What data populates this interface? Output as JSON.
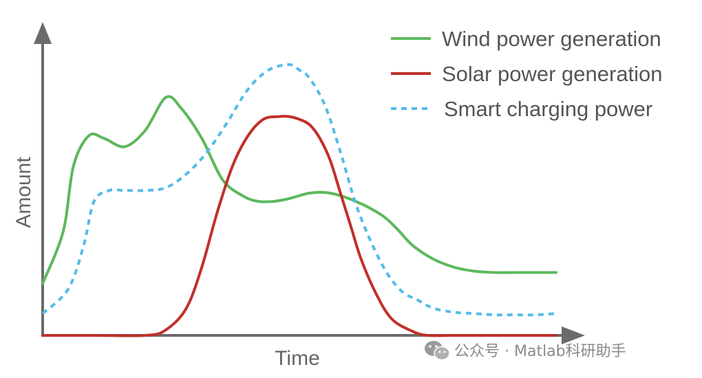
{
  "chart_data": {
    "type": "line",
    "title": "",
    "xlabel": "Time",
    "ylabel": "Amount",
    "xlim": [
      0,
      100
    ],
    "ylim": [
      0,
      100
    ],
    "axis_ticks": false,
    "grid": false,
    "legend_position": "top-right",
    "series": [
      {
        "name": "Wind power generation",
        "color": "#5cb85c",
        "style": "solid",
        "x": [
          0,
          4,
          6,
          9,
          12,
          16,
          20,
          24,
          27,
          31,
          35,
          39,
          42,
          45,
          48,
          52,
          56,
          61,
          66,
          69,
          72,
          76,
          80,
          84,
          88,
          92,
          96,
          100
        ],
        "y": [
          19,
          38,
          62,
          73,
          72,
          69,
          75,
          87,
          83,
          72,
          57,
          51,
          49,
          49,
          50,
          52,
          52,
          49,
          44,
          39,
          33,
          28,
          25,
          23.5,
          23,
          23,
          23,
          23
        ]
      },
      {
        "name": "Solar power generation",
        "color": "#c0302a",
        "style": "solid",
        "x": [
          0,
          10,
          20,
          24,
          28,
          31,
          34,
          37,
          40,
          43,
          46,
          48,
          50,
          52,
          54,
          56,
          58,
          60,
          62,
          65,
          68,
          72,
          75,
          80,
          90,
          100
        ],
        "y": [
          0,
          0,
          0,
          2,
          10,
          25,
          45,
          62,
          73,
          79,
          80,
          80,
          79,
          77,
          72,
          64,
          52,
          40,
          28,
          15,
          6,
          1.5,
          0,
          0,
          0,
          0
        ]
      },
      {
        "name": "Smart charging power",
        "color": "#55bbea",
        "style": "dashed",
        "x": [
          0,
          5,
          8,
          10,
          13,
          16,
          20,
          24,
          28,
          32,
          36,
          40,
          44,
          48,
          50,
          52,
          55,
          58,
          61,
          64,
          67,
          70,
          73,
          76,
          80,
          84,
          88,
          92,
          96,
          100
        ],
        "y": [
          8,
          17,
          33,
          49,
          53,
          53,
          53,
          54,
          59,
          67,
          78,
          90,
          97,
          99,
          97,
          94,
          84,
          67,
          48,
          34,
          23,
          16,
          13,
          10,
          8.5,
          8,
          7.5,
          7.5,
          7.5,
          8
        ]
      }
    ]
  },
  "watermark": {
    "text": "公众号 · Matlab科研助手",
    "icon": "wechat-icon"
  },
  "colors": {
    "axis": "#6b6b6b",
    "background": "#ffffff"
  }
}
